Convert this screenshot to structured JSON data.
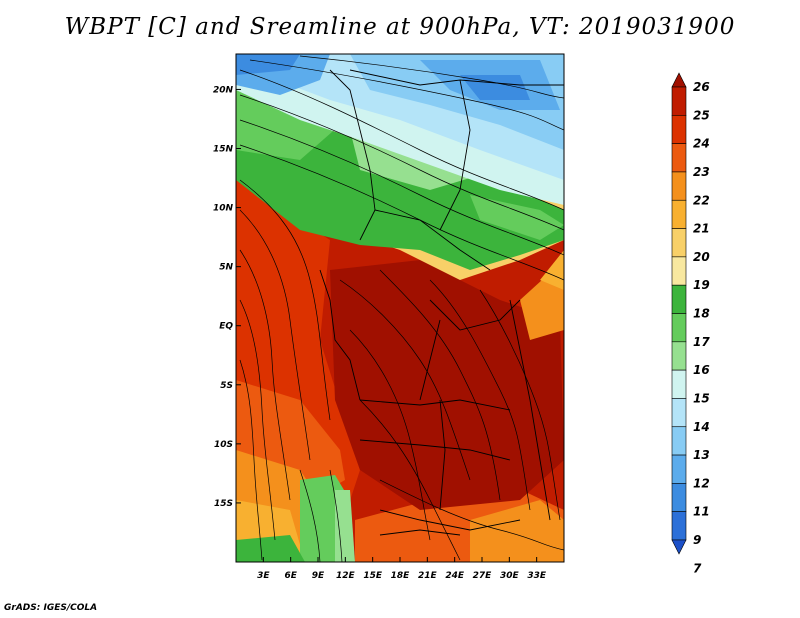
{
  "title": "WBPT [C] and Sreamline at 900hPa, VT: 2019031900",
  "footer": "GrADS: IGES/COLA",
  "map": {
    "lon_range": [
      0,
      36
    ],
    "lat_range": [
      -20,
      23
    ],
    "x_ticks": [
      "3E",
      "6E",
      "9E",
      "12E",
      "15E",
      "18E",
      "21E",
      "24E",
      "27E",
      "30E",
      "33E"
    ],
    "x_tick_values": [
      3,
      6,
      9,
      12,
      15,
      18,
      21,
      24,
      27,
      30,
      33
    ],
    "y_ticks": [
      "20N",
      "15N",
      "10N",
      "5N",
      "EQ",
      "5S",
      "10S",
      "15S"
    ],
    "y_tick_values": [
      20,
      15,
      10,
      5,
      0,
      -5,
      -10,
      -15
    ]
  },
  "colorbar": {
    "labels": [
      "26",
      "25",
      "24",
      "23",
      "22",
      "21",
      "20",
      "19",
      "18",
      "17",
      "16",
      "15",
      "14",
      "13",
      "12",
      "11",
      "9",
      "7"
    ],
    "colors": [
      "#a01000",
      "#c01c00",
      "#dc3200",
      "#ec5a10",
      "#f4901c",
      "#f8b030",
      "#f8d068",
      "#f8e8a0",
      "#3cb43c",
      "#64cc5c",
      "#96e090",
      "#d0f4f0",
      "#b4e4f8",
      "#88ccf4",
      "#5cacec",
      "#3c8ce0",
      "#2c70d8",
      "#1c50c8"
    ]
  }
}
